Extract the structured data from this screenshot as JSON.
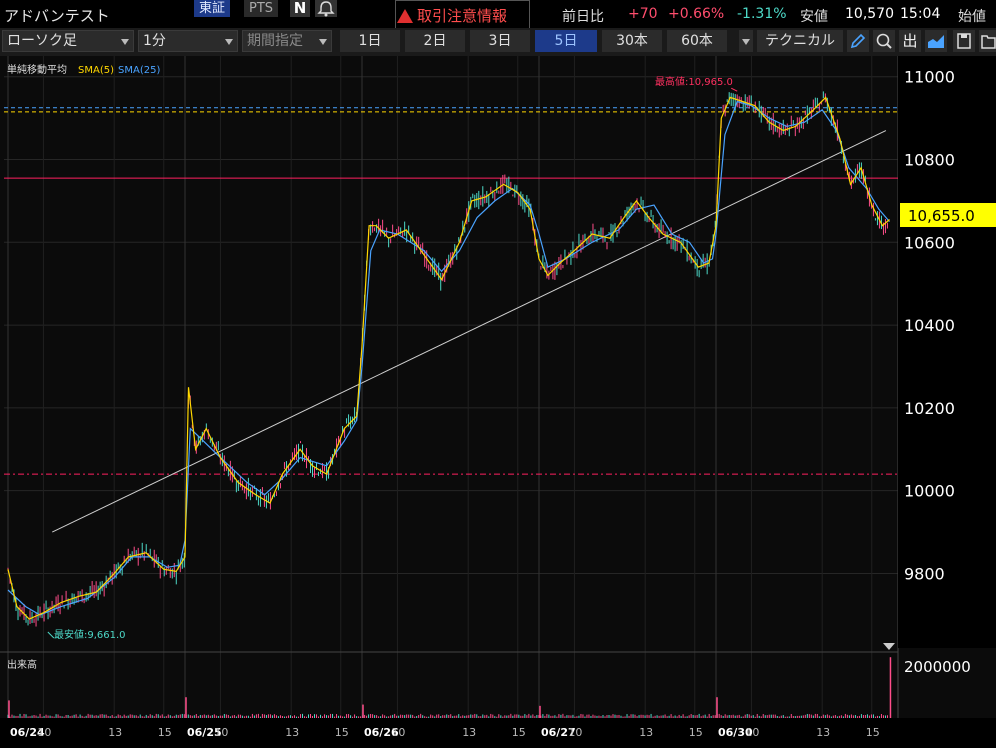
{
  "header": {
    "stock_name": "アドバンテスト",
    "market_primary": "東証",
    "market_secondary": "PTS",
    "alert_text": "取引注意情報",
    "prev_day_label": "前日比",
    "change_value": "+70",
    "change_pct": "+0.66%",
    "other_pct": "-1.31%",
    "low_label": "安値",
    "low_value": "10,570",
    "time": "15:04",
    "open_label": "始値"
  },
  "toolbar": {
    "chart_type": "ローソク足",
    "interval": "1分",
    "period": "期間指定",
    "ranges": [
      "1日",
      "2日",
      "3日",
      "5日",
      "30本",
      "60本"
    ],
    "active_range": "5日",
    "technical": "テクニカル"
  },
  "indicators": {
    "title": "単純移動平均",
    "sma5": "SMA(5)",
    "sma25": "SMA(25)",
    "sma5_color": "#ffd700",
    "sma25_color": "#4aa3ff"
  },
  "annotations": {
    "high_label": "最高値:10,965.0",
    "low_label": "最安値:9,661.0",
    "current_price": "10,655.0"
  },
  "volume_pane": {
    "title": "出来高",
    "axis_label": "2000000"
  },
  "chart_data": {
    "type": "line",
    "title": "単純移動平均",
    "y_ticks": [
      "11000",
      "10800",
      "10600",
      "10400",
      "10200",
      "10000",
      "9800"
    ],
    "ylim": [
      9620,
      11050
    ],
    "x_ticks": [
      {
        "label": "06/24",
        "bold": true,
        "v": 0
      },
      {
        "label": "10",
        "bold": false,
        "v": 0.2
      },
      {
        "label": "13",
        "bold": false,
        "v": 0.6
      },
      {
        "label": "15",
        "bold": false,
        "v": 0.88
      },
      {
        "label": "06/25",
        "bold": true,
        "v": 1
      },
      {
        "label": "10",
        "bold": false,
        "v": 1.2
      },
      {
        "label": "13",
        "bold": false,
        "v": 1.6
      },
      {
        "label": "15",
        "bold": false,
        "v": 1.88
      },
      {
        "label": "06/26",
        "bold": true,
        "v": 2
      },
      {
        "label": "10",
        "bold": false,
        "v": 2.2
      },
      {
        "label": "13",
        "bold": false,
        "v": 2.6
      },
      {
        "label": "15",
        "bold": false,
        "v": 2.88
      },
      {
        "label": "06/27",
        "bold": true,
        "v": 3
      },
      {
        "label": "10",
        "bold": false,
        "v": 3.2
      },
      {
        "label": "13",
        "bold": false,
        "v": 3.6
      },
      {
        "label": "15",
        "bold": false,
        "v": 3.88
      },
      {
        "label": "06/30",
        "bold": true,
        "v": 4
      },
      {
        "label": "10",
        "bold": false,
        "v": 4.2
      },
      {
        "label": "13",
        "bold": false,
        "v": 4.6
      },
      {
        "label": "15",
        "bold": false,
        "v": 4.88
      }
    ],
    "series": [
      {
        "name": "SMA(25)",
        "color": "#4aa3ff",
        "points": [
          [
            0.0,
            9760
          ],
          [
            0.1,
            9720
          ],
          [
            0.18,
            9700
          ],
          [
            0.3,
            9720
          ],
          [
            0.45,
            9740
          ],
          [
            0.6,
            9790
          ],
          [
            0.7,
            9840
          ],
          [
            0.8,
            9840
          ],
          [
            0.9,
            9815
          ],
          [
            0.97,
            9820
          ],
          [
            1.0,
            9880
          ],
          [
            1.03,
            10150
          ],
          [
            1.08,
            10130
          ],
          [
            1.2,
            10080
          ],
          [
            1.35,
            10020
          ],
          [
            1.45,
            9990
          ],
          [
            1.55,
            10030
          ],
          [
            1.65,
            10080
          ],
          [
            1.8,
            10060
          ],
          [
            1.9,
            10120
          ],
          [
            1.97,
            10170
          ],
          [
            2.0,
            10300
          ],
          [
            2.05,
            10580
          ],
          [
            2.1,
            10630
          ],
          [
            2.2,
            10620
          ],
          [
            2.35,
            10580
          ],
          [
            2.45,
            10530
          ],
          [
            2.55,
            10580
          ],
          [
            2.65,
            10660
          ],
          [
            2.75,
            10700
          ],
          [
            2.85,
            10730
          ],
          [
            2.95,
            10690
          ],
          [
            3.0,
            10620
          ],
          [
            3.05,
            10540
          ],
          [
            3.15,
            10560
          ],
          [
            3.3,
            10600
          ],
          [
            3.45,
            10630
          ],
          [
            3.55,
            10680
          ],
          [
            3.65,
            10690
          ],
          [
            3.75,
            10620
          ],
          [
            3.85,
            10600
          ],
          [
            3.93,
            10550
          ],
          [
            3.98,
            10560
          ],
          [
            4.0,
            10620
          ],
          [
            4.05,
            10860
          ],
          [
            4.12,
            10940
          ],
          [
            4.2,
            10930
          ],
          [
            4.3,
            10900
          ],
          [
            4.4,
            10880
          ],
          [
            4.5,
            10890
          ],
          [
            4.6,
            10920
          ],
          [
            4.68,
            10870
          ],
          [
            4.75,
            10780
          ],
          [
            4.85,
            10730
          ],
          [
            4.92,
            10680
          ],
          [
            4.98,
            10650
          ]
        ]
      },
      {
        "name": "SMA(5)",
        "color": "#ffd700",
        "points": [
          [
            0.0,
            9810
          ],
          [
            0.05,
            9720
          ],
          [
            0.12,
            9690
          ],
          [
            0.2,
            9705
          ],
          [
            0.3,
            9730
          ],
          [
            0.4,
            9745
          ],
          [
            0.5,
            9755
          ],
          [
            0.6,
            9800
          ],
          [
            0.68,
            9840
          ],
          [
            0.78,
            9850
          ],
          [
            0.88,
            9810
          ],
          [
            0.95,
            9805
          ],
          [
            1.0,
            9840
          ],
          [
            1.02,
            10250
          ],
          [
            1.06,
            10100
          ],
          [
            1.12,
            10150
          ],
          [
            1.2,
            10080
          ],
          [
            1.3,
            10020
          ],
          [
            1.4,
            9990
          ],
          [
            1.48,
            9970
          ],
          [
            1.55,
            10040
          ],
          [
            1.65,
            10100
          ],
          [
            1.72,
            10060
          ],
          [
            1.8,
            10040
          ],
          [
            1.9,
            10150
          ],
          [
            1.97,
            10180
          ],
          [
            2.0,
            10350
          ],
          [
            2.04,
            10640
          ],
          [
            2.08,
            10640
          ],
          [
            2.15,
            10610
          ],
          [
            2.25,
            10630
          ],
          [
            2.35,
            10570
          ],
          [
            2.45,
            10510
          ],
          [
            2.55,
            10600
          ],
          [
            2.62,
            10700
          ],
          [
            2.7,
            10710
          ],
          [
            2.8,
            10740
          ],
          [
            2.88,
            10720
          ],
          [
            2.95,
            10680
          ],
          [
            3.0,
            10560
          ],
          [
            3.05,
            10520
          ],
          [
            3.12,
            10550
          ],
          [
            3.2,
            10580
          ],
          [
            3.3,
            10620
          ],
          [
            3.4,
            10610
          ],
          [
            3.48,
            10660
          ],
          [
            3.55,
            10700
          ],
          [
            3.62,
            10660
          ],
          [
            3.7,
            10620
          ],
          [
            3.8,
            10600
          ],
          [
            3.9,
            10540
          ],
          [
            3.96,
            10550
          ],
          [
            4.0,
            10640
          ],
          [
            4.03,
            10900
          ],
          [
            4.08,
            10950
          ],
          [
            4.15,
            10940
          ],
          [
            4.22,
            10930
          ],
          [
            4.3,
            10890
          ],
          [
            4.38,
            10870
          ],
          [
            4.45,
            10880
          ],
          [
            4.55,
            10920
          ],
          [
            4.62,
            10950
          ],
          [
            4.7,
            10850
          ],
          [
            4.76,
            10740
          ],
          [
            4.82,
            10780
          ],
          [
            4.88,
            10690
          ],
          [
            4.94,
            10640
          ],
          [
            4.98,
            10655
          ]
        ]
      }
    ],
    "trendline": {
      "from": [
        0.25,
        9900
      ],
      "to": [
        4.96,
        10870
      ]
    },
    "h_lines": [
      {
        "value": 10915,
        "color": "#ffd700",
        "style": "dash"
      },
      {
        "value": 10925,
        "color": "#4aa3ff",
        "style": "dash"
      },
      {
        "value": 10755,
        "color": "#ff2060",
        "style": "solid"
      },
      {
        "value": 10040,
        "color": "#ff2060",
        "style": "dashdot"
      }
    ],
    "high_point": {
      "x": 4.12,
      "y": 10965
    },
    "low_point": {
      "x": 0.18,
      "y": 9661
    },
    "current": 10655,
    "volume": {
      "ylim": [
        0,
        2000000
      ],
      "spikes": [
        [
          0.0,
          550000
        ],
        [
          1.0,
          650000
        ],
        [
          2.0,
          420000
        ],
        [
          3.0,
          380000
        ],
        [
          4.0,
          650000
        ],
        [
          4.98,
          1900000
        ]
      ]
    }
  }
}
